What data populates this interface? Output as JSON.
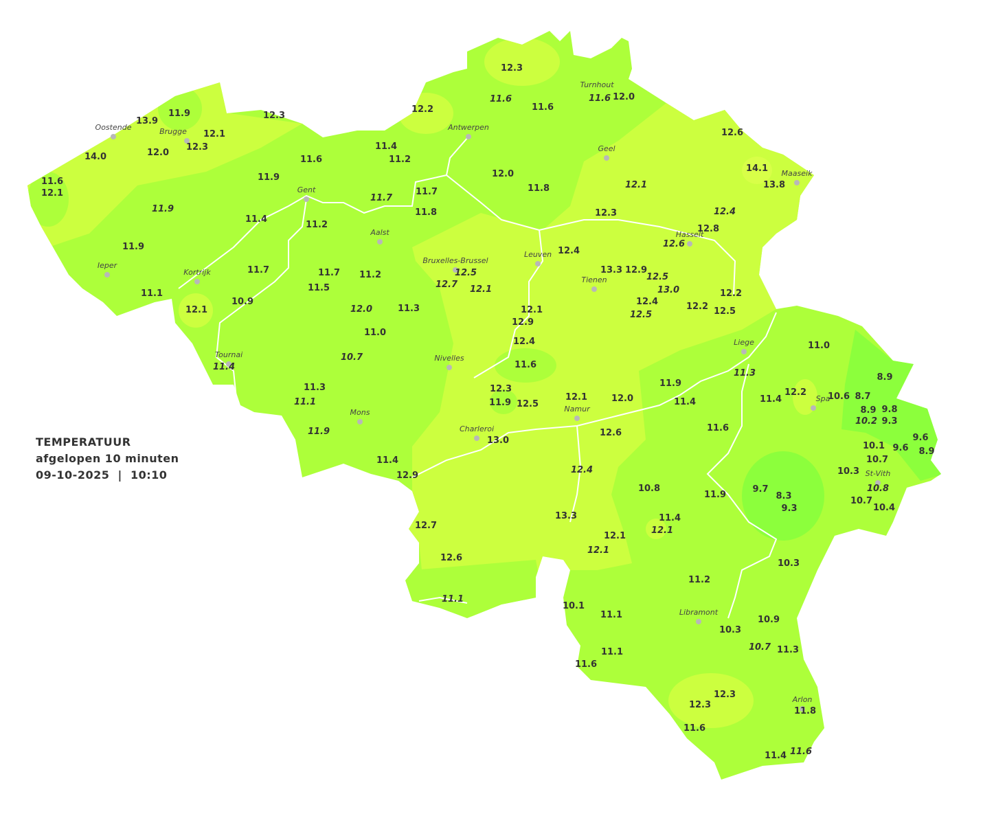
{
  "legend": {
    "title": "TEMPERATUUR",
    "subtitle": "afgelopen 10 minuten",
    "datetime": "09-10-2025  |  10:10"
  },
  "colors": {
    "zone_12_14": "#ccff3f",
    "zone_10_12": "#adff3a",
    "zone_8_10": "#8cff3c",
    "rivers": "#ffffff",
    "text": "#333333"
  },
  "cities": [
    {
      "name": "Oostende"
    },
    {
      "name": "Brugge"
    },
    {
      "name": "Antwerpen"
    },
    {
      "name": "Turnhout"
    },
    {
      "name": "Geel"
    },
    {
      "name": "Maaseik"
    },
    {
      "name": "Gent"
    },
    {
      "name": "Aalst"
    },
    {
      "name": "Hasselt"
    },
    {
      "name": "Leuven"
    },
    {
      "name": "Bruxelles-Brussel"
    },
    {
      "name": "Tienen"
    },
    {
      "name": "Ieper"
    },
    {
      "name": "Kortrijk"
    },
    {
      "name": "Liege"
    },
    {
      "name": "Tournai"
    },
    {
      "name": "Nivelles"
    },
    {
      "name": "Spa"
    },
    {
      "name": "Mons"
    },
    {
      "name": "Charleroi"
    },
    {
      "name": "Namur"
    },
    {
      "name": "St-Vith"
    },
    {
      "name": "Libramont"
    },
    {
      "name": "Arlon"
    }
  ],
  "stations": [
    {
      "v": "12.3"
    },
    {
      "v": "11.6",
      "italic": true
    },
    {
      "v": "11.6"
    },
    {
      "v": "11.6",
      "italic": true
    },
    {
      "v": "12.0"
    },
    {
      "v": "12.2"
    },
    {
      "v": "11.9"
    },
    {
      "v": "13.9"
    },
    {
      "v": "12.3"
    },
    {
      "v": "12.1"
    },
    {
      "v": "12.3"
    },
    {
      "v": "14.0"
    },
    {
      "v": "12.0"
    },
    {
      "v": "11.4"
    },
    {
      "v": "11.2"
    },
    {
      "v": "11.6"
    },
    {
      "v": "12.6"
    },
    {
      "v": "14.1"
    },
    {
      "v": "13.8"
    },
    {
      "v": "11.6"
    },
    {
      "v": "12.1"
    },
    {
      "v": "11.9"
    },
    {
      "v": "12.0"
    },
    {
      "v": "11.8"
    },
    {
      "v": "12.1",
      "italic": true
    },
    {
      "v": "11.7"
    },
    {
      "v": "11.7",
      "italic": true
    },
    {
      "v": "11.9",
      "italic": true
    },
    {
      "v": "11.8"
    },
    {
      "v": "12.3"
    },
    {
      "v": "12.4",
      "italic": true
    },
    {
      "v": "11.4"
    },
    {
      "v": "11.2"
    },
    {
      "v": "12.8"
    },
    {
      "v": "12.6",
      "italic": true
    },
    {
      "v": "11.9"
    },
    {
      "v": "12.4"
    },
    {
      "v": "11.7"
    },
    {
      "v": "11.7"
    },
    {
      "v": "11.2"
    },
    {
      "v": "13.3"
    },
    {
      "v": "12.9"
    },
    {
      "v": "12.5",
      "italic": true
    },
    {
      "v": "12.7",
      "italic": true
    },
    {
      "v": "12.1",
      "italic": true
    },
    {
      "v": "12.5",
      "italic": true
    },
    {
      "v": "13.0",
      "italic": true
    },
    {
      "v": "11.5"
    },
    {
      "v": "11.1"
    },
    {
      "v": "12.2"
    },
    {
      "v": "10.9"
    },
    {
      "v": "12.4"
    },
    {
      "v": "12.2"
    },
    {
      "v": "12.5"
    },
    {
      "v": "12.5",
      "italic": true
    },
    {
      "v": "12.1"
    },
    {
      "v": "12.0",
      "italic": true
    },
    {
      "v": "11.3"
    },
    {
      "v": "12.1"
    },
    {
      "v": "12.9"
    },
    {
      "v": "11.0"
    },
    {
      "v": "12.4"
    },
    {
      "v": "11.0"
    },
    {
      "v": "10.7",
      "italic": true
    },
    {
      "v": "11.4",
      "italic": true
    },
    {
      "v": "11.6"
    },
    {
      "v": "11.3",
      "italic": true
    },
    {
      "v": "8.9"
    },
    {
      "v": "11.9"
    },
    {
      "v": "11.3"
    },
    {
      "v": "12.3"
    },
    {
      "v": "11.4"
    },
    {
      "v": "12.2"
    },
    {
      "v": "10.6"
    },
    {
      "v": "8.7"
    },
    {
      "v": "12.0"
    },
    {
      "v": "11.9"
    },
    {
      "v": "12.5"
    },
    {
      "v": "12.1"
    },
    {
      "v": "11.1",
      "italic": true
    },
    {
      "v": "11.4"
    },
    {
      "v": "8.9"
    },
    {
      "v": "9.8"
    },
    {
      "v": "10.2",
      "italic": true
    },
    {
      "v": "9.3"
    },
    {
      "v": "11.9",
      "italic": true
    },
    {
      "v": "11.6"
    },
    {
      "v": "12.6"
    },
    {
      "v": "13.0"
    },
    {
      "v": "9.6"
    },
    {
      "v": "10.1"
    },
    {
      "v": "9.6"
    },
    {
      "v": "8.9"
    },
    {
      "v": "10.7"
    },
    {
      "v": "11.4"
    },
    {
      "v": "12.4",
      "italic": true
    },
    {
      "v": "10.3"
    },
    {
      "v": "12.9"
    },
    {
      "v": "10.8",
      "italic": true
    },
    {
      "v": "10.8"
    },
    {
      "v": "9.7"
    },
    {
      "v": "8.3"
    },
    {
      "v": "11.9"
    },
    {
      "v": "10.7"
    },
    {
      "v": "9.3"
    },
    {
      "v": "10.4"
    },
    {
      "v": "13.3"
    },
    {
      "v": "11.4"
    },
    {
      "v": "12.1",
      "italic": true
    },
    {
      "v": "12.7"
    },
    {
      "v": "12.1"
    },
    {
      "v": "12.1",
      "italic": true
    },
    {
      "v": "12.6"
    },
    {
      "v": "10.3"
    },
    {
      "v": "11.2"
    },
    {
      "v": "11.1",
      "italic": true
    },
    {
      "v": "10.1"
    },
    {
      "v": "11.1"
    },
    {
      "v": "10.9"
    },
    {
      "v": "10.3"
    },
    {
      "v": "10.7",
      "italic": true
    },
    {
      "v": "11.3"
    },
    {
      "v": "11.1"
    },
    {
      "v": "11.6"
    },
    {
      "v": "12.3"
    },
    {
      "v": "12.3"
    },
    {
      "v": "11.8"
    },
    {
      "v": "11.6"
    },
    {
      "v": "11.4"
    },
    {
      "v": "11.6",
      "italic": true
    }
  ]
}
